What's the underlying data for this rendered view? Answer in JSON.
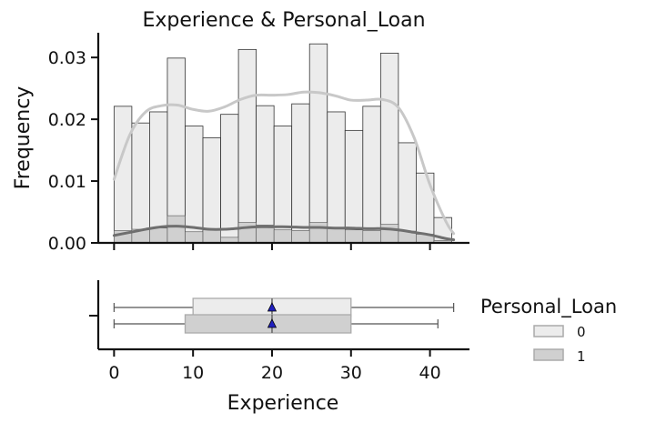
{
  "chart_data": {
    "type": "histogram+boxplot",
    "title": "Experience & Personal_Loan",
    "xlabel": "Experience",
    "ylabel": "Frequency",
    "xlim": [
      -2,
      45
    ],
    "ylim": [
      0,
      0.034
    ],
    "x_ticks": [
      "0",
      "10",
      "20",
      "30",
      "40"
    ],
    "y_ticks": [
      "0.00",
      "0.01",
      "0.02",
      "0.03"
    ],
    "grid": false,
    "legend": {
      "title": "Personal_Loan",
      "placement": "right",
      "entries": [
        "0",
        "1"
      ]
    },
    "bins": {
      "start": 0,
      "width": 2.25,
      "count": 19
    },
    "series": [
      {
        "name": "0",
        "color": "#ececec",
        "kde_color": "#c8c8c8",
        "bar_values": [
          0.0221,
          0.0194,
          0.0212,
          0.0299,
          0.0189,
          0.017,
          0.0208,
          0.0313,
          0.0222,
          0.0189,
          0.0225,
          0.0322,
          0.0212,
          0.0182,
          0.0221,
          0.0307,
          0.0162,
          0.0113,
          0.0041
        ],
        "kde": [
          [
            0,
            0.0103
          ],
          [
            2,
            0.0175
          ],
          [
            4,
            0.0212
          ],
          [
            6,
            0.0222
          ],
          [
            8,
            0.0223
          ],
          [
            10,
            0.0216
          ],
          [
            12,
            0.0213
          ],
          [
            14,
            0.022
          ],
          [
            16,
            0.0232
          ],
          [
            18,
            0.0239
          ],
          [
            20,
            0.0239
          ],
          [
            22,
            0.024
          ],
          [
            24,
            0.0244
          ],
          [
            26,
            0.0243
          ],
          [
            28,
            0.0238
          ],
          [
            30,
            0.0231
          ],
          [
            32,
            0.0231
          ],
          [
            34,
            0.0232
          ],
          [
            36,
            0.0219
          ],
          [
            38,
            0.017
          ],
          [
            40,
            0.0094
          ],
          [
            42,
            0.0035
          ],
          [
            43,
            0.0015
          ]
        ],
        "box": {
          "min": 0,
          "q1": 10,
          "median": 20,
          "q3": 30,
          "max": 43,
          "mean": 20
        }
      },
      {
        "name": "1",
        "color": "#d0d0d0",
        "kde_color": "#6f6f6f",
        "bar_values": [
          0.002,
          0.0022,
          0.0024,
          0.0044,
          0.0018,
          0.0021,
          0.0009,
          0.0033,
          0.0029,
          0.0021,
          0.002,
          0.0033,
          0.0023,
          0.0021,
          0.002,
          0.003,
          0.0019,
          0.0014,
          0.0004
        ],
        "kde": [
          [
            0,
            0.0012
          ],
          [
            2,
            0.0017
          ],
          [
            4,
            0.0022
          ],
          [
            6,
            0.0026
          ],
          [
            8,
            0.0027
          ],
          [
            10,
            0.0025
          ],
          [
            12,
            0.0022
          ],
          [
            14,
            0.0022
          ],
          [
            16,
            0.0024
          ],
          [
            18,
            0.0026
          ],
          [
            20,
            0.0026
          ],
          [
            22,
            0.0026
          ],
          [
            24,
            0.0025
          ],
          [
            26,
            0.0025
          ],
          [
            28,
            0.0024
          ],
          [
            30,
            0.0024
          ],
          [
            32,
            0.0023
          ],
          [
            34,
            0.0023
          ],
          [
            36,
            0.0021
          ],
          [
            38,
            0.0017
          ],
          [
            40,
            0.0013
          ],
          [
            42,
            0.0007
          ],
          [
            43,
            0.0005
          ]
        ],
        "box": {
          "min": 0,
          "q1": 9,
          "median": 20,
          "q3": 30,
          "max": 41,
          "mean": 20
        }
      }
    ],
    "mean_marker_color": "#1f1fbf"
  }
}
